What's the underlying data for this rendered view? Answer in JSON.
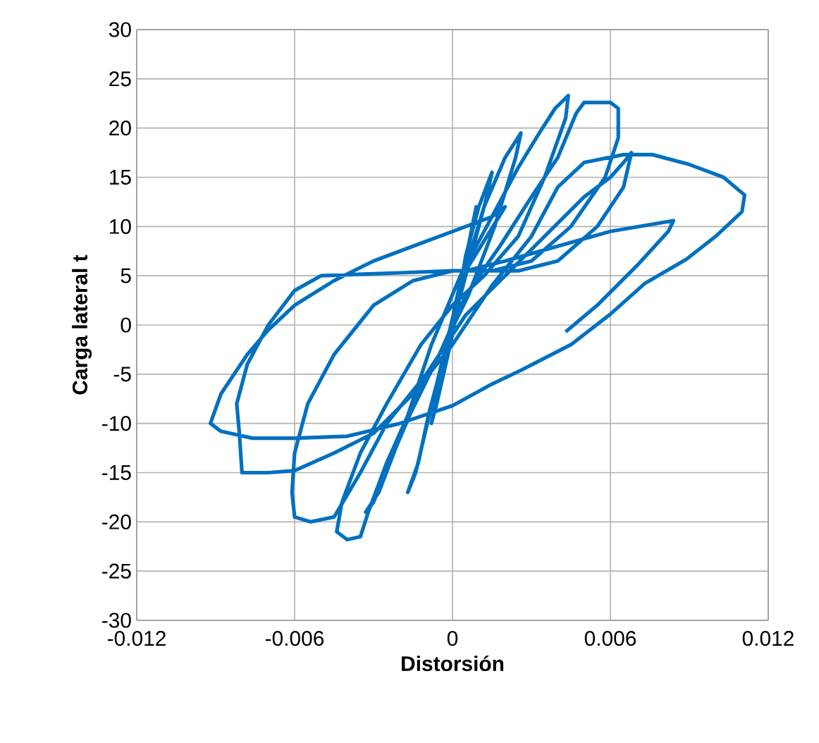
{
  "chart_data": {
    "type": "line",
    "xlabel": "Distorsión",
    "ylabel": "Carga lateral t",
    "xlim": [
      -0.012,
      0.012
    ],
    "ylim": [
      -30,
      30
    ],
    "xticks": [
      -0.012,
      -0.006,
      0,
      0.006,
      0.012
    ],
    "yticks": [
      -30,
      -25,
      -20,
      -15,
      -10,
      -5,
      0,
      5,
      10,
      15,
      20,
      25,
      30
    ],
    "grid": true,
    "marker": "none",
    "line_style": "solid",
    "series": [
      {
        "color": "#0070c0",
        "x": [
          0,
          0.0003,
          0.0006,
          0.0003,
          -0.0002,
          -0.0005,
          -0.0002,
          0.0002,
          0.0006,
          0.0009,
          0.0007,
          0.0001,
          -0.0004,
          -0.0008,
          -0.0006,
          0,
          0.0005,
          0.001,
          0.0015,
          0.0013,
          0.0006,
          -0.0002,
          -0.0009,
          -0.0013,
          -0.0017,
          -0.0014,
          -0.0006,
          0.0003,
          0.0012,
          0.002,
          0.0026,
          0.0024,
          0.0016,
          0.0006,
          -0.0005,
          -0.0016,
          -0.0024,
          -0.003,
          -0.0033,
          -0.0028,
          -0.0018,
          -0.0008,
          0.0003,
          0.0015,
          0.0025,
          0.0033,
          0.0039,
          0.0044,
          0.0043,
          0.0035,
          0.0025,
          0.0012,
          0,
          -0.0012,
          -0.0025,
          -0.0035,
          -0.0042,
          -0.0044,
          -0.004,
          -0.0035,
          -0.0032,
          -0.0025,
          -0.0015,
          -0.0005,
          0.0005,
          0.0018,
          0.003,
          0.004,
          0.0047,
          0.005,
          0.006,
          0.0063,
          0.0063,
          0.0058,
          0.0045,
          0.003,
          0.0015,
          0,
          -0.0015,
          -0.003,
          -0.0045,
          -0.0055,
          -0.006,
          -0.0061,
          -0.006,
          -0.0054,
          -0.0045,
          -0.0035,
          -0.0025,
          -0.001,
          0.0005,
          0.005,
          0.006,
          0.0065,
          0.0068,
          0.0065,
          0.0055,
          0.004,
          0.0025,
          0,
          -0.002,
          -0.005,
          -0.006,
          -0.007,
          -0.0078,
          -0.0082,
          -0.0081,
          -0.008,
          -0.007,
          -0.006,
          -0.0045,
          -0.003,
          -0.0015,
          0,
          0.0015,
          0.003,
          0.004,
          0.005,
          0.0065,
          0.0076,
          0.009,
          0.0103,
          0.0111,
          0.011,
          0.01,
          0.0089,
          0.0073,
          0.006,
          0.0045,
          0.0026,
          0.0015,
          0,
          -0.002,
          -0.004,
          -0.006,
          -0.0076,
          -0.0088,
          -0.0092,
          -0.0088,
          -0.0078,
          -0.007,
          -0.006,
          -0.0045,
          -0.003,
          -0.0015,
          0,
          0.0015,
          0.002,
          0.0005,
          0.002,
          0.004,
          0.006,
          0.0084,
          0.0082,
          0.007,
          0.0055,
          0.0043
        ],
        "values": [
          0,
          3,
          6,
          3,
          -2,
          -5,
          -2,
          2,
          8,
          12,
          9,
          2,
          -5,
          -10,
          -8,
          -1,
          7,
          12,
          15.5,
          13,
          6,
          -2,
          -9,
          -14,
          -17,
          -15,
          -6,
          4,
          12,
          17,
          19.5,
          17,
          10,
          3,
          -3,
          -9,
          -14,
          -18,
          -19,
          -17,
          -10,
          -2,
          5,
          11,
          16,
          19.5,
          22,
          23.3,
          21,
          15,
          9,
          5,
          2,
          -2,
          -8,
          -13,
          -18,
          -21,
          -21.8,
          -21.5,
          -19,
          -14,
          -8,
          -3,
          3,
          8,
          13,
          17,
          21.5,
          22.6,
          22.6,
          22,
          19,
          15,
          10,
          6.5,
          5.5,
          5.5,
          4.5,
          2,
          -3,
          -8,
          -13,
          -17,
          -19.5,
          -20,
          -19.5,
          -15,
          -10,
          -5,
          1,
          13,
          15,
          16.5,
          17.5,
          14,
          10,
          6.5,
          5.5,
          5.5,
          5.3,
          5,
          3.5,
          0,
          -4,
          -8,
          -11,
          -15,
          -15,
          -14.8,
          -13,
          -11,
          -7,
          -2,
          4,
          9,
          14,
          16.5,
          17.3,
          17.3,
          16.3,
          15,
          13.2,
          11.5,
          9,
          6.7,
          4.2,
          1.1,
          -2,
          -4.6,
          -6,
          -8.2,
          -10,
          -11.3,
          -11.5,
          -11.5,
          -10.8,
          -10,
          -7,
          -3,
          -0.5,
          2,
          4.5,
          6.5,
          8,
          9.5,
          11,
          12,
          5.5,
          6.5,
          8,
          9.5,
          10.6,
          9.5,
          6,
          2,
          -0.7
        ]
      }
    ]
  }
}
